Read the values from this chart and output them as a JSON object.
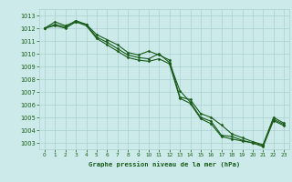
{
  "title": "Graphe pression niveau de la mer (hPa)",
  "bg_color": "#cceaea",
  "grid_color": "#aacfcf",
  "line_color": "#1a5c1a",
  "marker_color": "#1a5c1a",
  "xlim": [
    -0.5,
    23.5
  ],
  "ylim": [
    1002.5,
    1013.5
  ],
  "yticks": [
    1003,
    1004,
    1005,
    1006,
    1007,
    1008,
    1009,
    1010,
    1011,
    1012,
    1013
  ],
  "xticks": [
    0,
    1,
    2,
    3,
    4,
    5,
    6,
    7,
    8,
    9,
    10,
    11,
    12,
    13,
    14,
    15,
    16,
    17,
    18,
    19,
    20,
    21,
    22,
    23
  ],
  "series1": [
    1012.0,
    1012.5,
    1012.2,
    1012.5,
    1012.3,
    1011.5,
    1011.1,
    1010.7,
    1010.1,
    1009.9,
    1010.2,
    1009.9,
    1009.5,
    1006.6,
    1006.4,
    1005.3,
    1005.0,
    1004.4,
    1003.7,
    1003.4,
    1003.1,
    1002.85,
    1005.0,
    1004.55
  ],
  "series2": [
    1012.0,
    1012.3,
    1012.1,
    1012.6,
    1012.3,
    1011.3,
    1010.9,
    1010.4,
    1009.9,
    1009.7,
    1009.6,
    1010.0,
    1009.3,
    1007.1,
    1006.2,
    1005.0,
    1004.7,
    1003.6,
    1003.5,
    1003.2,
    1003.0,
    1002.8,
    1004.85,
    1004.45
  ],
  "series3": [
    1012.0,
    1012.2,
    1012.0,
    1012.5,
    1012.2,
    1011.2,
    1010.7,
    1010.2,
    1009.7,
    1009.5,
    1009.4,
    1009.6,
    1009.2,
    1006.5,
    1006.1,
    1004.9,
    1004.5,
    1003.5,
    1003.3,
    1003.15,
    1003.0,
    1002.7,
    1004.75,
    1004.35
  ]
}
